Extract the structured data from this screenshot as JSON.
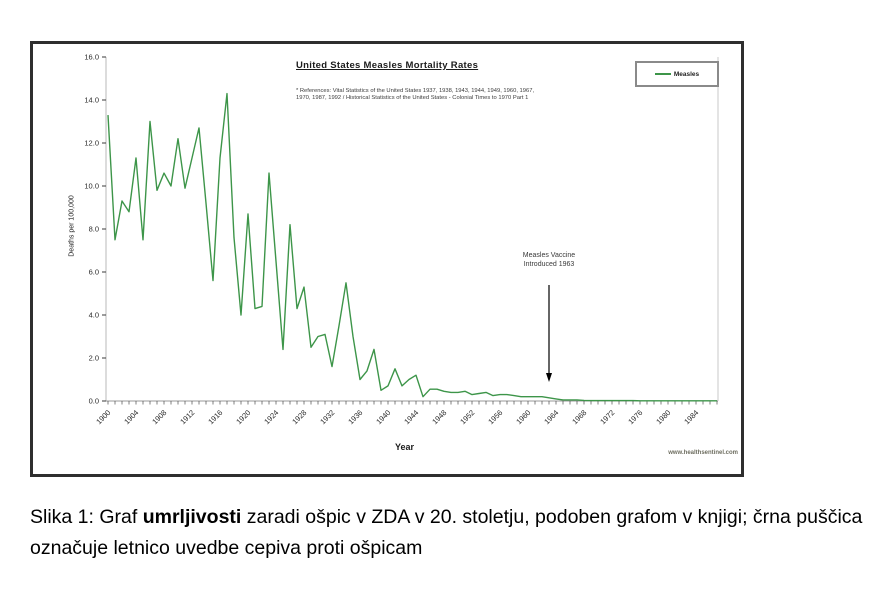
{
  "figure": {
    "chart": {
      "title": "United States Measles Mortality Rates",
      "reference_line1": "* References: Vital Statistics of the United States 1937, 1938, 1943, 1944, 1949, 1960, 1967,",
      "reference_line2": "1970, 1987, 1992 / Historical Statistics of the United States - Colonial Times to 1970 Part 1",
      "legend_label": "Measles",
      "ylabel": "Deaths per 100,000",
      "xlabel": "Year",
      "watermark": "www.healthsentinel.com",
      "annotation_line1": "Measles Vaccine",
      "annotation_line2": "Introduced 1963"
    }
  },
  "caption": {
    "prefix": "Slika 1: Graf ",
    "bold": "umrljivosti",
    "suffix": " zaradi ošpic v ZDA v 20. stoletju, podoben grafom v knjigi; črna puščica označuje letnico uvedbe cepiva proti ošpicam"
  },
  "chart_data": {
    "type": "line",
    "title": "United States Measles Mortality Rates",
    "xlabel": "Year",
    "ylabel": "Deaths per 100,000",
    "x_range": [
      1900,
      1987
    ],
    "ylim": [
      0,
      16
    ],
    "ytick_step": 2,
    "xticks": [
      1900,
      1904,
      1908,
      1912,
      1916,
      1920,
      1924,
      1928,
      1932,
      1936,
      1940,
      1944,
      1948,
      1952,
      1956,
      1960,
      1964,
      1968,
      1972,
      1976,
      1980,
      1984
    ],
    "grid": false,
    "legend_position": "top-right",
    "line_color": "#3d9549",
    "annotation": {
      "text": "Measles Vaccine Introduced 1963",
      "x": 1963
    },
    "series": [
      {
        "name": "Measles",
        "color": "#3d9549",
        "values": [
          13.3,
          7.5,
          9.3,
          8.8,
          11.3,
          7.5,
          13.0,
          9.8,
          10.6,
          10.0,
          12.2,
          9.9,
          11.3,
          12.7,
          9.2,
          5.6,
          11.3,
          14.3,
          7.6,
          4.0,
          8.7,
          4.3,
          4.4,
          10.6,
          6.5,
          2.4,
          8.2,
          4.3,
          5.3,
          2.5,
          3.0,
          3.1,
          1.6,
          3.5,
          5.5,
          3.0,
          1.0,
          1.4,
          2.4,
          0.5,
          0.7,
          1.5,
          0.7,
          1.0,
          1.2,
          0.2,
          0.55,
          0.55,
          0.45,
          0.4,
          0.4,
          0.45,
          0.3,
          0.35,
          0.4,
          0.25,
          0.3,
          0.3,
          0.25,
          0.2,
          0.2,
          0.2,
          0.2,
          0.15,
          0.1,
          0.05,
          0.05,
          0.05,
          0.03,
          0.02,
          0.02,
          0.02,
          0.02,
          0.02,
          0.02,
          0.02,
          0.01,
          0.01,
          0.01,
          0.01,
          0.01,
          0.01,
          0.01,
          0.01,
          0.01,
          0.01,
          0.01,
          0.01
        ]
      }
    ]
  }
}
